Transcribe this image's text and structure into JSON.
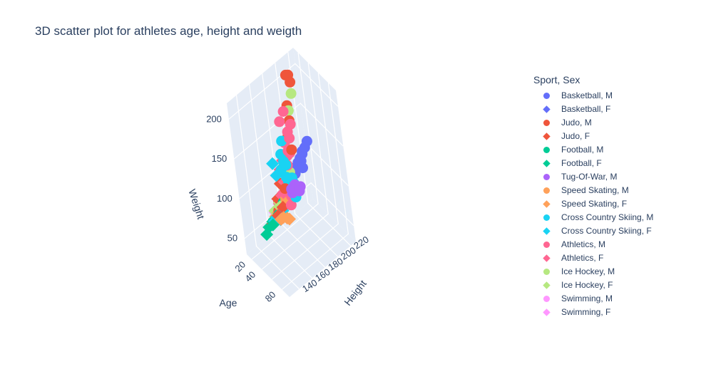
{
  "chart_data": {
    "type": "scatter",
    "subtype": "3d",
    "title": "3D scatter plot for athletes age, height and weigth",
    "axes": {
      "x": {
        "label": "Age",
        "ticks": [
          20,
          40,
          60,
          80
        ],
        "tick_labels": [
          "20",
          "40",
          "",
          "80"
        ],
        "range": [
          10,
          95
        ]
      },
      "y": {
        "label": "Height",
        "ticks": [
          140,
          160,
          180,
          200,
          220
        ],
        "range": [
          125,
          228
        ]
      },
      "z": {
        "label": "Weight",
        "ticks": [
          50,
          100,
          150,
          200
        ],
        "range": [
          30,
          220
        ]
      }
    },
    "legend": {
      "title": "Sport, Sex",
      "placement": "right"
    },
    "series": [
      {
        "name": "Basketball, M",
        "color": "#636efa",
        "symbol": "circle",
        "points": [
          [
            24,
            205,
            100
          ],
          [
            28,
            210,
            110
          ],
          [
            22,
            200,
            95
          ],
          [
            31,
            213,
            118
          ],
          [
            26,
            198,
            92
          ],
          [
            25,
            208,
            104
          ],
          [
            29,
            202,
            99
          ],
          [
            33,
            216,
            125
          ],
          [
            23,
            195,
            88
          ],
          [
            27,
            211,
            112
          ],
          [
            30,
            206,
            105
          ],
          [
            35,
            204,
            101
          ]
        ]
      },
      {
        "name": "Basketball, F",
        "color": "#636efa",
        "symbol": "diamond",
        "points": [
          [
            23,
            185,
            75
          ],
          [
            26,
            190,
            80
          ],
          [
            28,
            182,
            72
          ],
          [
            24,
            188,
            78
          ],
          [
            30,
            192,
            85
          ],
          [
            22,
            180,
            70
          ]
        ]
      },
      {
        "name": "Judo, M",
        "color": "#ef553b",
        "symbol": "circle",
        "points": [
          [
            25,
            195,
            140
          ],
          [
            28,
            198,
            160
          ],
          [
            24,
            200,
            175
          ],
          [
            30,
            205,
            205
          ],
          [
            27,
            202,
            214
          ],
          [
            29,
            204,
            214
          ],
          [
            26,
            190,
            120
          ],
          [
            23,
            185,
            100
          ],
          [
            31,
            178,
            90
          ],
          [
            22,
            172,
            73
          ],
          [
            27,
            182,
            81
          ],
          [
            24,
            188,
            108
          ],
          [
            33,
            193,
            130
          ],
          [
            26,
            168,
            66
          ]
        ]
      },
      {
        "name": "Judo, F",
        "color": "#ef553b",
        "symbol": "diamond",
        "points": [
          [
            24,
            170,
            78
          ],
          [
            26,
            175,
            95
          ],
          [
            28,
            165,
            63
          ],
          [
            22,
            160,
            52
          ],
          [
            30,
            172,
            70
          ]
        ]
      },
      {
        "name": "Football, M",
        "color": "#00cc96",
        "symbol": "circle",
        "points": [
          [
            23,
            178,
            74
          ],
          [
            25,
            182,
            78
          ],
          [
            27,
            175,
            72
          ],
          [
            22,
            185,
            82
          ],
          [
            28,
            180,
            76
          ],
          [
            24,
            172,
            68
          ],
          [
            30,
            188,
            85
          ]
        ]
      },
      {
        "name": "Football, F",
        "color": "#00cc96",
        "symbol": "diamond",
        "points": [
          [
            22,
            160,
            55
          ],
          [
            24,
            165,
            58
          ],
          [
            26,
            168,
            62
          ],
          [
            20,
            155,
            50
          ],
          [
            23,
            162,
            57
          ],
          [
            27,
            170,
            64
          ],
          [
            21,
            150,
            45
          ],
          [
            25,
            158,
            54
          ]
        ]
      },
      {
        "name": "Tug-Of-War, M",
        "color": "#ab63fa",
        "symbol": "circle",
        "points": [
          [
            42,
            180,
            95
          ],
          [
            48,
            182,
            100
          ],
          [
            52,
            178,
            102
          ],
          [
            55,
            185,
            103
          ],
          [
            60,
            180,
            104
          ],
          [
            50,
            176,
            98
          ],
          [
            46,
            183,
            101
          ]
        ]
      },
      {
        "name": "Speed Skating, M",
        "color": "#ffa15a",
        "symbol": "circle",
        "points": [
          [
            24,
            180,
            78
          ],
          [
            27,
            185,
            82
          ],
          [
            22,
            175,
            72
          ],
          [
            26,
            183,
            80
          ],
          [
            29,
            178,
            76
          ],
          [
            31,
            188,
            86
          ]
        ]
      },
      {
        "name": "Speed Skating, F",
        "color": "#ffa15a",
        "symbol": "diamond",
        "points": [
          [
            24,
            168,
            62
          ],
          [
            26,
            170,
            65
          ],
          [
            22,
            165,
            58
          ],
          [
            28,
            172,
            66
          ],
          [
            35,
            168,
            63
          ],
          [
            40,
            170,
            64
          ],
          [
            32,
            166,
            60
          ],
          [
            45,
            170,
            66
          ]
        ]
      },
      {
        "name": "Cross Country Skiing, M",
        "color": "#19d3f3",
        "symbol": "circle",
        "points": [
          [
            24,
            180,
            75
          ],
          [
            27,
            183,
            78
          ],
          [
            26,
            178,
            72
          ],
          [
            30,
            185,
            80
          ],
          [
            28,
            181,
            76
          ],
          [
            25,
            176,
            70
          ],
          [
            32,
            188,
            84
          ],
          [
            29,
            186,
            82
          ],
          [
            23,
            174,
            68
          ],
          [
            33,
            190,
            90
          ],
          [
            27,
            182,
            85
          ],
          [
            31,
            184,
            95
          ],
          [
            35,
            187,
            100
          ],
          [
            26,
            179,
            110
          ],
          [
            29,
            182,
            120
          ],
          [
            28,
            180,
            130
          ],
          [
            24,
            186,
            140
          ],
          [
            30,
            184,
            115
          ],
          [
            34,
            180,
            105
          ],
          [
            37,
            188,
            92
          ],
          [
            40,
            185,
            88
          ],
          [
            45,
            183,
            85
          ],
          [
            50,
            180,
            90
          ]
        ]
      },
      {
        "name": "Cross Country Skiing, F",
        "color": "#19d3f3",
        "symbol": "diamond",
        "points": [
          [
            24,
            165,
            58
          ],
          [
            27,
            168,
            60
          ],
          [
            25,
            170,
            63
          ],
          [
            23,
            162,
            55
          ],
          [
            29,
            172,
            65
          ],
          [
            31,
            166,
            59
          ],
          [
            26,
            168,
            125
          ],
          [
            28,
            170,
            110
          ]
        ]
      },
      {
        "name": "Athletics, M",
        "color": "#ff6692",
        "symbol": "circle",
        "points": [
          [
            23,
            180,
            72
          ],
          [
            26,
            190,
            120
          ],
          [
            28,
            195,
            140
          ],
          [
            25,
            185,
            100
          ],
          [
            30,
            192,
            125
          ],
          [
            22,
            175,
            65
          ],
          [
            27,
            188,
            110
          ],
          [
            24,
            182,
            90
          ],
          [
            29,
            193,
            150
          ],
          [
            31,
            189,
            130
          ],
          [
            26,
            184,
            85
          ],
          [
            33,
            196,
            160
          ],
          [
            28,
            178,
            70
          ],
          [
            21,
            170,
            60
          ],
          [
            25,
            186,
            165
          ],
          [
            27,
            192,
            175
          ],
          [
            24,
            190,
            135
          ],
          [
            30,
            187,
            95
          ],
          [
            35,
            183,
            80
          ],
          [
            40,
            178,
            75
          ]
        ]
      },
      {
        "name": "Athletics, F",
        "color": "#ff6692",
        "symbol": "diamond",
        "points": [
          [
            24,
            170,
            60
          ],
          [
            26,
            175,
            80
          ],
          [
            22,
            165,
            55
          ],
          [
            28,
            180,
            95
          ],
          [
            25,
            178,
            110
          ],
          [
            27,
            182,
            120
          ],
          [
            23,
            172,
            70
          ],
          [
            29,
            176,
            85
          ],
          [
            30,
            168,
            58
          ]
        ]
      },
      {
        "name": "Ice Hockey, M",
        "color": "#b6e880",
        "symbol": "circle",
        "points": [
          [
            25,
            185,
            90
          ],
          [
            28,
            188,
            95
          ],
          [
            23,
            183,
            88
          ],
          [
            27,
            190,
            100
          ],
          [
            30,
            186,
            93
          ],
          [
            24,
            182,
            86
          ],
          [
            26,
            200,
            170
          ],
          [
            29,
            205,
            190
          ]
        ]
      },
      {
        "name": "Ice Hockey, F",
        "color": "#b6e880",
        "symbol": "diamond",
        "points": [
          [
            22,
            165,
            65
          ],
          [
            25,
            168,
            68
          ],
          [
            27,
            170,
            70
          ],
          [
            24,
            172,
            72
          ]
        ]
      },
      {
        "name": "Swimming, M",
        "color": "#ff97ff",
        "symbol": "circle",
        "points": [
          [
            20,
            188,
            80
          ],
          [
            22,
            190,
            85
          ],
          [
            24,
            185,
            78
          ],
          [
            21,
            192,
            88
          ],
          [
            23,
            186,
            82
          ]
        ]
      },
      {
        "name": "Swimming, F",
        "color": "#ff97ff",
        "symbol": "diamond",
        "points": [
          [
            19,
            172,
            62
          ],
          [
            21,
            175,
            65
          ],
          [
            18,
            170,
            60
          ],
          [
            22,
            178,
            66
          ],
          [
            20,
            173,
            63
          ],
          [
            17,
            168,
            58
          ]
        ]
      }
    ]
  }
}
